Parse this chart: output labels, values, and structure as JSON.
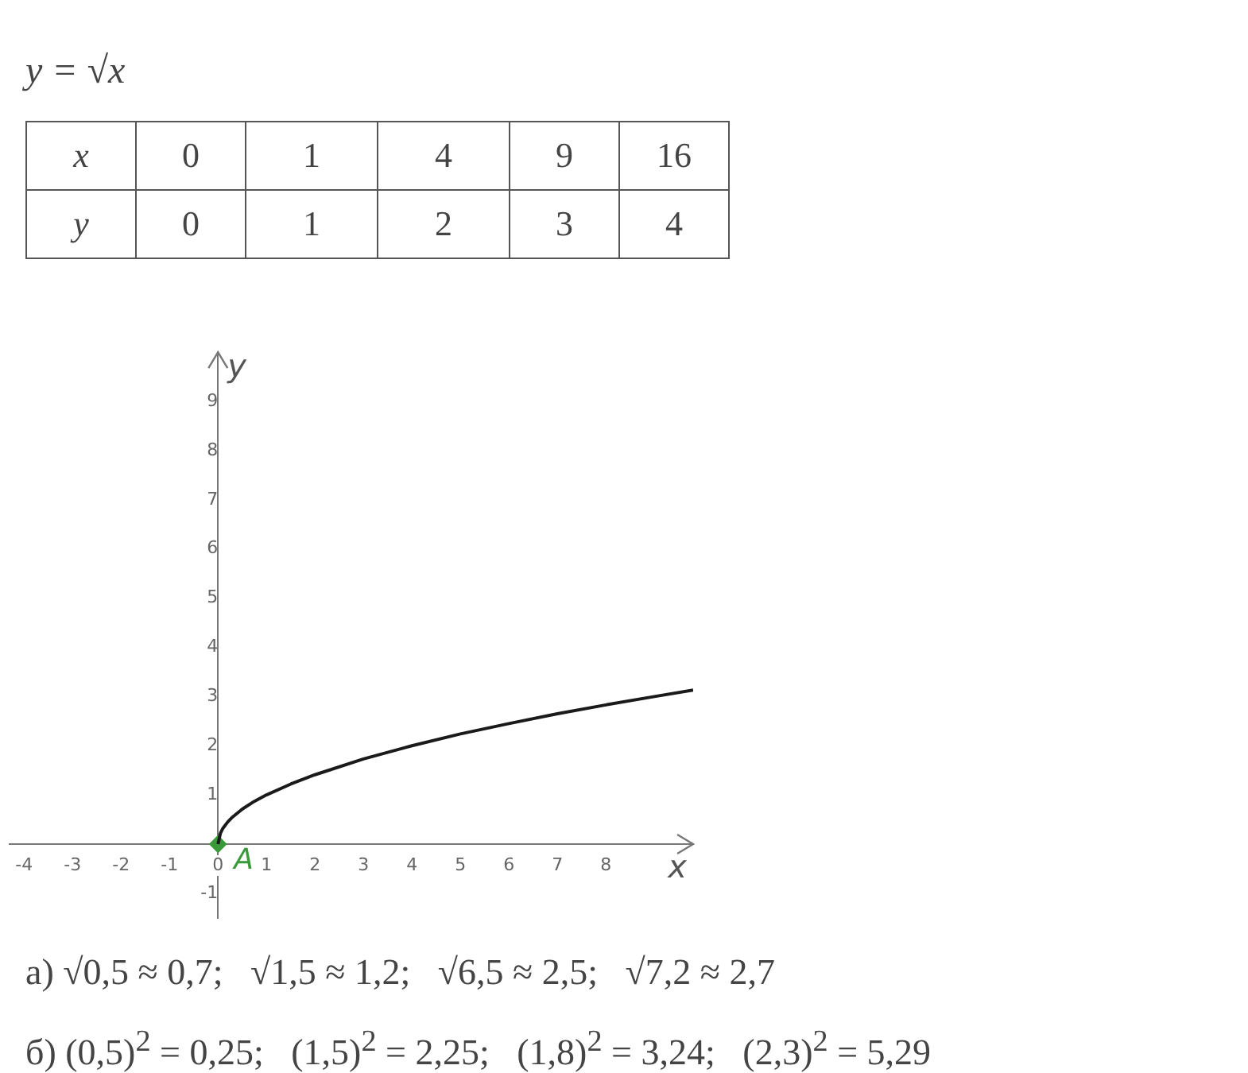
{
  "chart_data": {
    "type": "line",
    "title": "y = √x",
    "xlabel": "x",
    "ylabel": "y",
    "xlim": [
      -4.3,
      9.8
    ],
    "ylim": [
      -1.5,
      10
    ],
    "xticks": [
      -4,
      -3,
      -2,
      -1,
      0,
      1,
      2,
      3,
      4,
      5,
      6,
      7,
      8
    ],
    "yticks": [
      -1,
      1,
      2,
      3,
      4,
      5,
      6,
      7,
      8,
      9
    ],
    "grid": false,
    "legend": false,
    "series": [
      {
        "type": "line",
        "color": "#1a1a1a",
        "marker": "none",
        "x": [
          0,
          0.05,
          0.1,
          0.2,
          0.3,
          0.5,
          0.75,
          1,
          1.5,
          2,
          3,
          4,
          5,
          6,
          7,
          8,
          9,
          9.8
        ],
        "values": [
          0,
          0.22,
          0.32,
          0.45,
          0.55,
          0.71,
          0.87,
          1,
          1.22,
          1.41,
          1.73,
          2,
          2.24,
          2.45,
          2.65,
          2.83,
          3,
          3.13
        ]
      },
      {
        "type": "scatter",
        "color": "#3a9a3a",
        "marker": "diamond",
        "x": [
          0
        ],
        "values": [
          0
        ]
      }
    ],
    "annotations": [
      "x",
      "0",
      "1",
      "4",
      "9",
      "16",
      "y",
      "0",
      "1",
      "2",
      "3",
      "4",
      {
        "text": "A",
        "x": 0,
        "y": 0
      },
      "а) √0,5 ≈ 0,7;   √1,5 ≈ 1,2;   √6,5 ≈ 2,5;   √7,2 ≈ 2,7",
      "б) (0,5)$^{2}$ = 0,25;   (1,5)$^{2}$ = 2,25;   (1,8)$^{2}$ = 3,24;   (2,3)$^{2}$ = 5,29"
    ]
  }
}
